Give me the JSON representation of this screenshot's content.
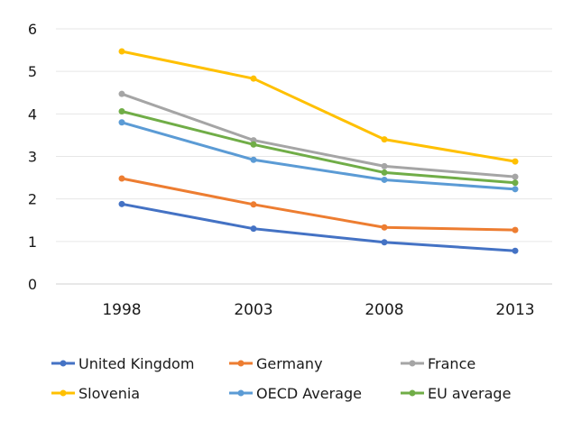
{
  "chart_data": {
    "type": "line",
    "x": [
      "1998",
      "2003",
      "2008",
      "2013"
    ],
    "ylim": [
      0,
      6
    ],
    "yticks": [
      "0",
      "1",
      "2",
      "3",
      "4",
      "5",
      "6"
    ],
    "grid": true,
    "legend_position": "bottom",
    "series": [
      {
        "name": "United Kingdom",
        "color": "#4472C4",
        "values": [
          1.88,
          1.3,
          0.98,
          0.78
        ]
      },
      {
        "name": "Germany",
        "color": "#ED7D31",
        "values": [
          2.48,
          1.87,
          1.33,
          1.27
        ]
      },
      {
        "name": "France",
        "color": "#A5A5A5",
        "values": [
          4.47,
          3.38,
          2.77,
          2.52
        ]
      },
      {
        "name": "Slovenia",
        "color": "#FFC000",
        "values": [
          5.47,
          4.83,
          3.4,
          2.88
        ]
      },
      {
        "name": "OECD Average",
        "color": "#5B9BD5",
        "values": [
          3.8,
          2.92,
          2.45,
          2.23
        ]
      },
      {
        "name": "EU average",
        "color": "#70AD47",
        "values": [
          4.06,
          3.28,
          2.62,
          2.38
        ]
      }
    ]
  }
}
